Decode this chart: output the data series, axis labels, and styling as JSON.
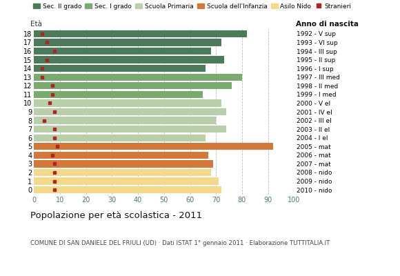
{
  "ages": [
    18,
    17,
    16,
    15,
    14,
    13,
    12,
    11,
    10,
    9,
    8,
    7,
    6,
    5,
    4,
    3,
    2,
    1,
    0
  ],
  "values": [
    82,
    72,
    68,
    73,
    66,
    80,
    76,
    65,
    72,
    74,
    70,
    74,
    66,
    92,
    67,
    69,
    68,
    71,
    72
  ],
  "stranieri": [
    3,
    5,
    8,
    5,
    3,
    3,
    7,
    7,
    6,
    8,
    4,
    8,
    8,
    9,
    7,
    8,
    8,
    8,
    8
  ],
  "bar_colors": [
    "#4a7c59",
    "#4a7c59",
    "#4a7c59",
    "#4a7c59",
    "#4a7c59",
    "#7aab6e",
    "#7aab6e",
    "#7aab6e",
    "#b8cfaa",
    "#b8cfaa",
    "#b8cfaa",
    "#b8cfaa",
    "#b8cfaa",
    "#d4783a",
    "#d4783a",
    "#d4783a",
    "#f5d98b",
    "#f5d98b",
    "#f5d98b"
  ],
  "anno_di_nascita": [
    "1992 - V sup",
    "1993 - VI sup",
    "1994 - III sup",
    "1995 - II sup",
    "1996 - I sup",
    "1997 - III med",
    "1998 - II med",
    "1999 - I med",
    "2000 - V el",
    "2001 - IV el",
    "2002 - III el",
    "2003 - II el",
    "2004 - I el",
    "2005 - mat",
    "2006 - mat",
    "2007 - mat",
    "2008 - nido",
    "2009 - nido",
    "2010 - nido"
  ],
  "legend_labels": [
    "Sec. II grado",
    "Sec. I grado",
    "Scuola Primaria",
    "Scuola dell'Infanzia",
    "Asilo Nido",
    "Stranieri"
  ],
  "legend_colors": [
    "#4a7c59",
    "#7aab6e",
    "#b8cfaa",
    "#d4783a",
    "#f5d98b",
    "#b22222"
  ],
  "title": "Popolazione per età scolastica - 2011",
  "subtitle": "COMUNE DI SAN DANIELE DEL FRIULI (UD) · Dati ISTAT 1° gennaio 2011 · Elaborazione TUTTITALIA.IT",
  "label_eta": "Età",
  "label_anno": "Anno di nascita",
  "xlim": [
    0,
    100
  ],
  "xticks": [
    0,
    10,
    20,
    30,
    40,
    50,
    60,
    70,
    80,
    90,
    100
  ],
  "background_color": "#ffffff",
  "grid_color": "#bbbbbb",
  "stranieri_color": "#b22222",
  "bar_height": 0.82
}
